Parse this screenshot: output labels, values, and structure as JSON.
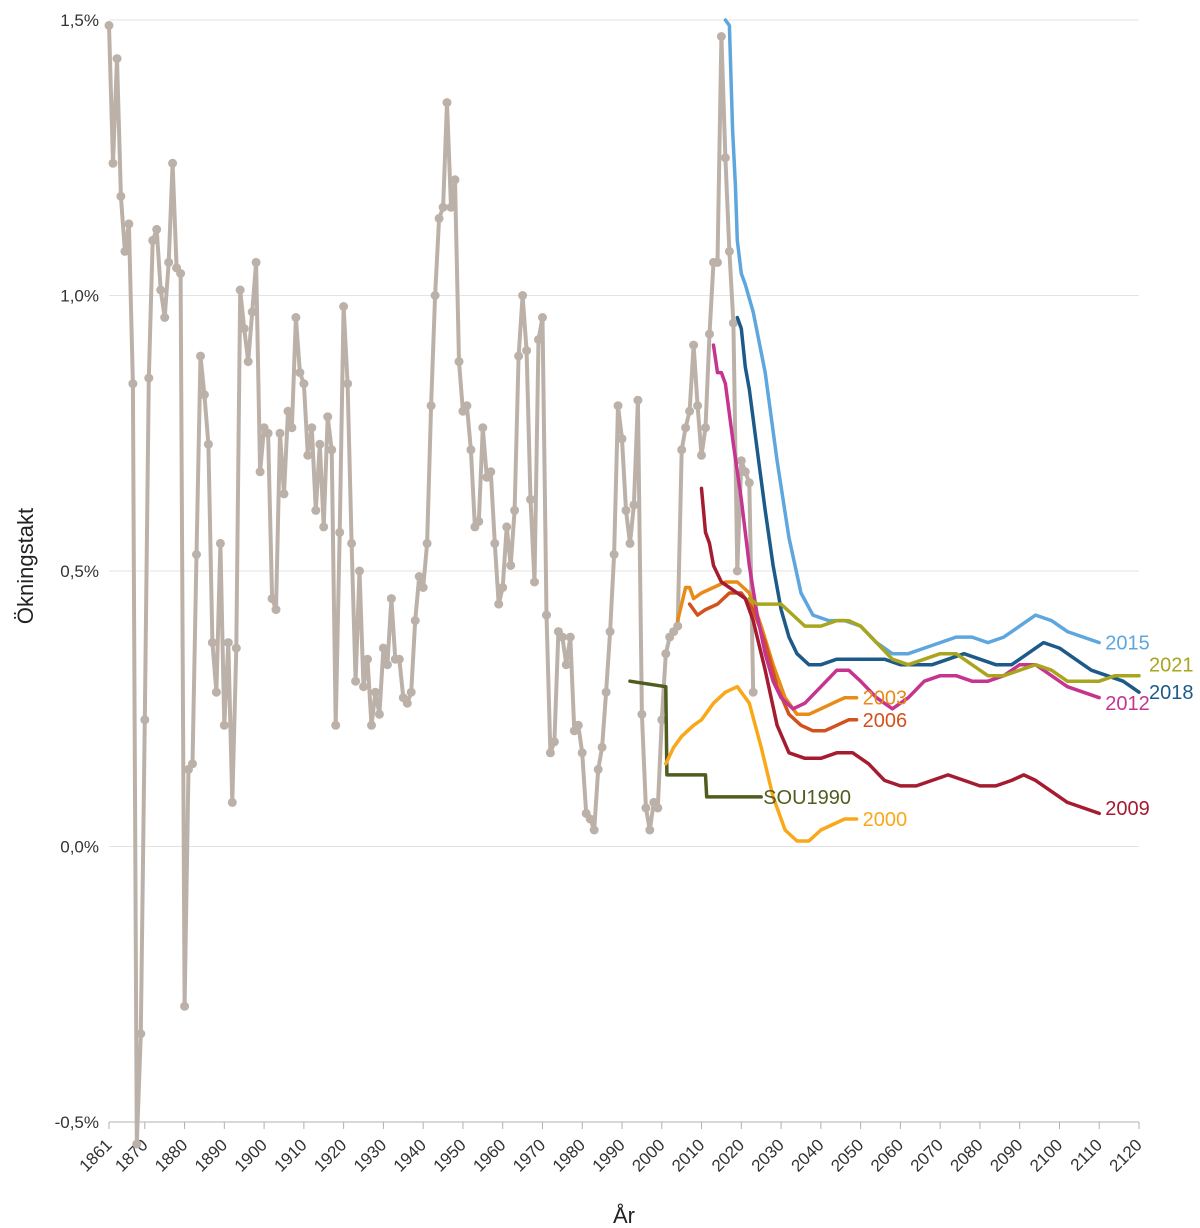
{
  "chart_data": {
    "type": "line",
    "title": "",
    "xlabel": "År",
    "ylabel": "Ökningstakt",
    "xlim": [
      1861,
      2120
    ],
    "ylim": [
      -0.5,
      1.5
    ],
    "x_ticks": [
      1861,
      1870,
      1880,
      1890,
      1900,
      1910,
      1920,
      1930,
      1940,
      1950,
      1960,
      1970,
      1980,
      1990,
      2000,
      2010,
      2020,
      2030,
      2040,
      2050,
      2060,
      2070,
      2080,
      2090,
      2100,
      2110,
      2120
    ],
    "y_ticks": [
      {
        "value": -0.5,
        "label": "-0,5%"
      },
      {
        "value": 0.0,
        "label": "0,0%"
      },
      {
        "value": 0.5,
        "label": "0,5%"
      },
      {
        "value": 1.0,
        "label": "1,0%"
      },
      {
        "value": 1.5,
        "label": "1,5%"
      }
    ],
    "grid": "horizontal",
    "series": [
      {
        "name": "",
        "color": "#bcb1a8",
        "markers": true,
        "x": [
          1861,
          1862,
          1863,
          1864,
          1865,
          1866,
          1867,
          1868,
          1869,
          1870,
          1871,
          1872,
          1873,
          1874,
          1875,
          1876,
          1877,
          1878,
          1879,
          1880,
          1881,
          1882,
          1883,
          1884,
          1885,
          1886,
          1887,
          1888,
          1889,
          1890,
          1891,
          1892,
          1893,
          1894,
          1895,
          1896,
          1897,
          1898,
          1899,
          1900,
          1901,
          1902,
          1903,
          1904,
          1905,
          1906,
          1907,
          1908,
          1909,
          1910,
          1911,
          1912,
          1913,
          1914,
          1915,
          1916,
          1917,
          1918,
          1919,
          1920,
          1921,
          1922,
          1923,
          1924,
          1925,
          1926,
          1927,
          1928,
          1929,
          1930,
          1931,
          1932,
          1933,
          1934,
          1935,
          1936,
          1937,
          1938,
          1939,
          1940,
          1941,
          1942,
          1943,
          1944,
          1945,
          1946,
          1947,
          1948,
          1949,
          1950,
          1951,
          1952,
          1953,
          1954,
          1955,
          1956,
          1957,
          1958,
          1959,
          1960,
          1961,
          1962,
          1963,
          1964,
          1965,
          1966,
          1967,
          1968,
          1969,
          1970,
          1971,
          1972,
          1973,
          1974,
          1975,
          1976,
          1977,
          1978,
          1979,
          1980,
          1981,
          1982,
          1983,
          1984,
          1985,
          1986,
          1987,
          1988,
          1989,
          1990,
          1991,
          1992,
          1993,
          1994,
          1995,
          1996,
          1997,
          1998,
          1999,
          2000,
          2001,
          2002,
          2003,
          2004,
          2005,
          2006,
          2007,
          2008,
          2009,
          2010,
          2011,
          2012,
          2013,
          2014,
          2015,
          2016,
          2017,
          2018,
          2019,
          2020,
          2021,
          2022,
          2023
        ],
        "values": [
          1.49,
          1.24,
          1.43,
          1.18,
          1.08,
          1.13,
          0.84,
          -0.54,
          -0.34,
          0.23,
          0.85,
          1.1,
          1.12,
          1.01,
          0.96,
          1.06,
          1.24,
          1.05,
          1.04,
          -0.29,
          0.14,
          0.15,
          0.53,
          0.89,
          0.82,
          0.73,
          0.37,
          0.28,
          0.55,
          0.22,
          0.37,
          0.08,
          0.36,
          1.01,
          0.94,
          0.88,
          0.97,
          1.06,
          0.68,
          0.76,
          0.75,
          0.45,
          0.43,
          0.75,
          0.64,
          0.79,
          0.76,
          0.96,
          0.86,
          0.84,
          0.71,
          0.76,
          0.61,
          0.73,
          0.58,
          0.78,
          0.72,
          0.22,
          0.57,
          0.98,
          0.84,
          0.55,
          0.3,
          0.5,
          0.29,
          0.34,
          0.22,
          0.28,
          0.24,
          0.36,
          0.33,
          0.45,
          0.34,
          0.34,
          0.27,
          0.26,
          0.28,
          0.41,
          0.49,
          0.47,
          0.55,
          0.8,
          1.0,
          1.14,
          1.16,
          1.35,
          1.16,
          1.21,
          0.88,
          0.79,
          0.8,
          0.72,
          0.58,
          0.59,
          0.76,
          0.67,
          0.68,
          0.55,
          0.44,
          0.47,
          0.58,
          0.51,
          0.61,
          0.89,
          1.0,
          0.9,
          0.63,
          0.48,
          0.92,
          0.96,
          0.42,
          0.17,
          0.19,
          0.39,
          0.38,
          0.33,
          0.38,
          0.21,
          0.22,
          0.17,
          0.06,
          0.05,
          0.03,
          0.14,
          0.18,
          0.28,
          0.39,
          0.53,
          0.8,
          0.74,
          0.61,
          0.55,
          0.62,
          0.81,
          0.24,
          0.07,
          0.03,
          0.08,
          0.07,
          0.23,
          0.35,
          0.38,
          0.39,
          0.4,
          0.72,
          0.76,
          0.79,
          0.91,
          0.8,
          0.71,
          0.76,
          0.93,
          1.06,
          1.06,
          1.47,
          1.25,
          1.08,
          0.95,
          0.5,
          0.7,
          0.68,
          0.66,
          0.28
        ]
      },
      {
        "name": "SOU1990",
        "color": "#4f5d1f",
        "x": [
          1992,
          2001,
          2001.3,
          2011,
          2011.3,
          2025
        ],
        "values": [
          0.3,
          0.29,
          0.13,
          0.13,
          0.09,
          0.09
        ]
      },
      {
        "name": "2000",
        "color": "#f9a81a",
        "x": [
          2001,
          2003,
          2005,
          2008,
          2010,
          2013,
          2016,
          2019,
          2022,
          2025,
          2028,
          2031,
          2034,
          2037,
          2040,
          2043,
          2046,
          2049
        ],
        "values": [
          0.15,
          0.18,
          0.2,
          0.22,
          0.23,
          0.26,
          0.28,
          0.29,
          0.26,
          0.18,
          0.09,
          0.03,
          0.01,
          0.01,
          0.03,
          0.04,
          0.05,
          0.05
        ]
      },
      {
        "name": "2003",
        "color": "#e98b18",
        "x": [
          2004,
          2006,
          2007,
          2008,
          2010,
          2013,
          2016,
          2019,
          2022,
          2025,
          2028,
          2031,
          2034,
          2037,
          2040,
          2043,
          2046,
          2049
        ],
        "values": [
          0.41,
          0.47,
          0.47,
          0.45,
          0.46,
          0.47,
          0.48,
          0.48,
          0.46,
          0.4,
          0.33,
          0.27,
          0.24,
          0.24,
          0.25,
          0.26,
          0.27,
          0.27
        ]
      },
      {
        "name": "2006",
        "color": "#d2521d",
        "x": [
          2007,
          2009,
          2011,
          2014,
          2017,
          2020,
          2023,
          2026,
          2029,
          2032,
          2035,
          2038,
          2041,
          2044,
          2047,
          2049
        ],
        "values": [
          0.44,
          0.42,
          0.43,
          0.44,
          0.46,
          0.46,
          0.43,
          0.37,
          0.29,
          0.24,
          0.22,
          0.21,
          0.21,
          0.22,
          0.23,
          0.23
        ]
      },
      {
        "name": "2009",
        "color": "#a51c30",
        "x": [
          2010,
          2011,
          2012,
          2013,
          2015,
          2017,
          2019,
          2021,
          2023,
          2026,
          2029,
          2032,
          2036,
          2040,
          2044,
          2048,
          2052,
          2056,
          2060,
          2064,
          2068,
          2072,
          2076,
          2080,
          2084,
          2088,
          2091,
          2094,
          2098,
          2102,
          2106,
          2110
        ],
        "values": [
          0.65,
          0.57,
          0.55,
          0.51,
          0.48,
          0.47,
          0.46,
          0.45,
          0.41,
          0.32,
          0.22,
          0.17,
          0.16,
          0.16,
          0.17,
          0.17,
          0.15,
          0.12,
          0.11,
          0.11,
          0.12,
          0.13,
          0.12,
          0.11,
          0.11,
          0.12,
          0.13,
          0.12,
          0.1,
          0.08,
          0.07,
          0.06
        ]
      },
      {
        "name": "2012",
        "color": "#c5358f",
        "x": [
          2013,
          2014,
          2015,
          2016,
          2018,
          2020,
          2022,
          2024,
          2026,
          2028,
          2030,
          2033,
          2036,
          2040,
          2044,
          2047,
          2050,
          2054,
          2058,
          2062,
          2066,
          2070,
          2074,
          2078,
          2082,
          2086,
          2090,
          2094,
          2098,
          2102,
          2106,
          2110
        ],
        "values": [
          0.91,
          0.86,
          0.86,
          0.84,
          0.73,
          0.63,
          0.51,
          0.42,
          0.35,
          0.3,
          0.27,
          0.25,
          0.26,
          0.29,
          0.32,
          0.32,
          0.3,
          0.27,
          0.25,
          0.27,
          0.3,
          0.31,
          0.31,
          0.3,
          0.3,
          0.31,
          0.33,
          0.33,
          0.31,
          0.29,
          0.28,
          0.27
        ]
      },
      {
        "name": "2015",
        "color": "#5ea6de",
        "x": [
          2016,
          2017,
          2017.8,
          2018.5,
          2019,
          2020,
          2021,
          2023,
          2026,
          2029,
          2032,
          2035,
          2038,
          2042,
          2046,
          2050,
          2054,
          2058,
          2062,
          2066,
          2070,
          2074,
          2078,
          2082,
          2086,
          2090,
          2094,
          2098,
          2102,
          2106,
          2110
        ],
        "values": [
          1.5,
          1.49,
          1.3,
          1.2,
          1.1,
          1.04,
          1.02,
          0.97,
          0.86,
          0.7,
          0.56,
          0.46,
          0.42,
          0.41,
          0.41,
          0.4,
          0.37,
          0.35,
          0.35,
          0.36,
          0.37,
          0.38,
          0.38,
          0.37,
          0.38,
          0.4,
          0.42,
          0.41,
          0.39,
          0.38,
          0.37
        ]
      },
      {
        "name": "2018",
        "color": "#1c5a8a",
        "x": [
          2019,
          2020,
          2021,
          2022,
          2024,
          2026,
          2028,
          2030,
          2032,
          2034,
          2037,
          2040,
          2044,
          2048,
          2052,
          2056,
          2060,
          2064,
          2068,
          2072,
          2076,
          2080,
          2084,
          2088,
          2092,
          2096,
          2100,
          2104,
          2108,
          2112,
          2116,
          2120
        ],
        "values": [
          0.96,
          0.94,
          0.87,
          0.83,
          0.72,
          0.61,
          0.51,
          0.43,
          0.38,
          0.35,
          0.33,
          0.33,
          0.34,
          0.34,
          0.34,
          0.34,
          0.33,
          0.33,
          0.33,
          0.34,
          0.35,
          0.34,
          0.33,
          0.33,
          0.35,
          0.37,
          0.36,
          0.34,
          0.32,
          0.31,
          0.3,
          0.28
        ]
      },
      {
        "name": "2021",
        "color": "#a9a51f",
        "x": [
          2022,
          2024,
          2026,
          2028,
          2030,
          2033,
          2036,
          2040,
          2044,
          2047,
          2050,
          2054,
          2058,
          2062,
          2066,
          2070,
          2074,
          2078,
          2082,
          2086,
          2090,
          2094,
          2098,
          2102,
          2106,
          2110,
          2114,
          2118,
          2120
        ],
        "values": [
          0.45,
          0.44,
          0.44,
          0.44,
          0.44,
          0.42,
          0.4,
          0.4,
          0.41,
          0.41,
          0.4,
          0.37,
          0.34,
          0.33,
          0.34,
          0.35,
          0.35,
          0.33,
          0.31,
          0.31,
          0.32,
          0.33,
          0.32,
          0.3,
          0.3,
          0.3,
          0.31,
          0.31,
          0.31
        ]
      }
    ],
    "end_labels": [
      {
        "series": "SOU1990",
        "text": "SOU1990",
        "x": 2025,
        "y": 0.09
      },
      {
        "series": "2000",
        "text": "2000",
        "x": 2050,
        "y": 0.05
      },
      {
        "series": "2003",
        "text": "2003",
        "x": 2050,
        "y": 0.27
      },
      {
        "series": "2006",
        "text": "2006",
        "x": 2050,
        "y": 0.23
      },
      {
        "series": "2009",
        "text": "2009",
        "x": 2111,
        "y": 0.07
      },
      {
        "series": "2012",
        "text": "2012",
        "x": 2111,
        "y": 0.26
      },
      {
        "series": "2015",
        "text": "2015",
        "x": 2111,
        "y": 0.37
      },
      {
        "series": "2018",
        "text": "2018",
        "x": 2122,
        "y": 0.28
      },
      {
        "series": "2021",
        "text": "2021",
        "x": 2122,
        "y": 0.33
      }
    ]
  }
}
